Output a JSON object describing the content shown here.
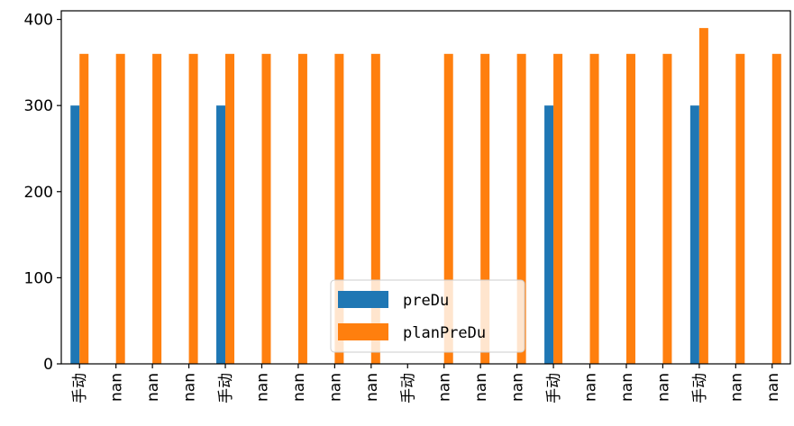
{
  "chart_data": {
    "type": "bar",
    "categories": [
      "手动",
      "nan",
      "nan",
      "nan",
      "手动",
      "nan",
      "nan",
      "nan",
      "nan",
      "手动",
      "nan",
      "nan",
      "nan",
      "手动",
      "nan",
      "nan",
      "nan",
      "手动",
      "nan",
      "nan"
    ],
    "series": [
      {
        "name": "preDu",
        "color": "#1f77b4",
        "values": [
          300,
          null,
          null,
          null,
          300,
          null,
          null,
          null,
          null,
          null,
          null,
          null,
          null,
          300,
          null,
          null,
          null,
          300,
          null,
          null
        ]
      },
      {
        "name": "planPreDu",
        "color": "#ff7f0e",
        "values": [
          360,
          360,
          360,
          360,
          360,
          360,
          360,
          360,
          360,
          null,
          360,
          360,
          360,
          360,
          360,
          360,
          360,
          390,
          360,
          360
        ]
      }
    ],
    "ylim": [
      0,
      410
    ],
    "yticks": [
      0,
      100,
      200,
      300,
      400
    ],
    "ytick_labels": [
      "0",
      "100",
      "200",
      "300",
      "400"
    ],
    "legend": {
      "position": "lower center"
    },
    "grid": false
  }
}
